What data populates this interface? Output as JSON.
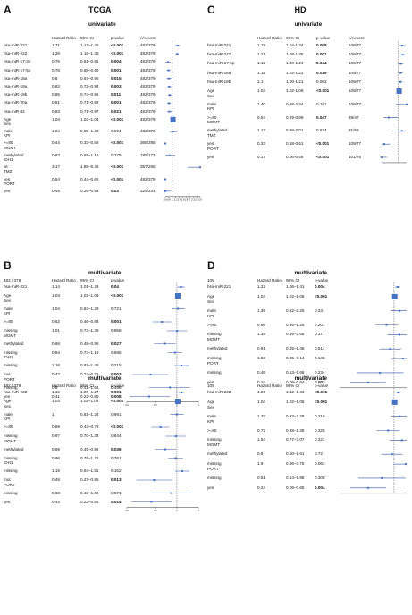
{
  "panels": [
    {
      "id": "A",
      "label": "A",
      "title": "TCGA",
      "subtitle": "univariate",
      "headers": {
        "ref": "",
        "hr": "Hazard Ratio",
        "ci": "95% CI",
        "p": "p-value",
        "n": "n/nevent"
      },
      "axis": {
        "min": 0.6,
        "max": 2.6,
        "ticks": [
          "0.6",
          "0.8",
          "1",
          "1.2",
          "1.4",
          "1.6",
          "1.8",
          "2",
          "2.2",
          "2.4",
          "2.6"
        ]
      },
      "rows": [
        {
          "label": "hsa-miR-221",
          "hr": "1.31",
          "ci": "1.17–1.46",
          "p": "<0.001",
          "n": "482/379",
          "bold": true,
          "est": 1.31,
          "lo": 1.17,
          "hi": 1.46
        },
        {
          "label": "hsa-miR-222",
          "hr": "1.28",
          "ci": "1.18–1.38",
          "p": "<0.001",
          "n": "482/379",
          "bold": true,
          "est": 1.28,
          "lo": 1.18,
          "hi": 1.38
        },
        {
          "label": "hsa-miR-17-3p",
          "hr": "0.75",
          "ci": "0.61–0.91",
          "p": "0.004",
          "n": "482/379",
          "bold": true,
          "est": 0.75,
          "lo": 0.61,
          "hi": 0.91
        },
        {
          "label": "hsa-miR-17-5p",
          "hr": "0.78",
          "ci": "0.68–0.90",
          "p": "0.001",
          "n": "482/379",
          "bold": true,
          "est": 0.78,
          "lo": 0.68,
          "hi": 0.9
        },
        {
          "label": "hsa-miR-18a",
          "hr": "0.8",
          "ci": "0.67–0.96",
          "p": "0.015",
          "n": "482/379",
          "bold": true,
          "est": 0.8,
          "lo": 0.67,
          "hi": 0.96
        },
        {
          "label": "hsa-miR-19a",
          "hr": "0.82",
          "ci": "0.72–0.94",
          "p": "0.003",
          "n": "482/379",
          "bold": true,
          "est": 0.82,
          "lo": 0.72,
          "hi": 0.94
        },
        {
          "label": "hsa-miR-19b",
          "hr": "0.85",
          "ci": "0.74–0.96",
          "p": "0.011",
          "n": "482/379",
          "bold": true,
          "est": 0.85,
          "lo": 0.74,
          "hi": 0.96
        },
        {
          "label": "hsa-miR-20a",
          "hr": "0.81",
          "ci": "0.71–0.92",
          "p": "0.001",
          "n": "482/379",
          "bold": true,
          "est": 0.81,
          "lo": 0.71,
          "hi": 0.92
        },
        {
          "label": "hsa-miR-92",
          "hr": "0.83",
          "ci": "0.71–0.97",
          "p": "0.021",
          "n": "482/379",
          "bold": true,
          "est": 0.83,
          "lo": 0.71,
          "hi": 0.97
        },
        {
          "label": "Age",
          "hr": "1.04",
          "ci": "1.03–1.04",
          "p": "<0.001",
          "n": "482/379",
          "bold": true,
          "est": 1.04,
          "lo": 1.03,
          "hi": 1.04,
          "big": true
        },
        {
          "pre": [
            "Sex"
          ],
          "label": "male",
          "hr": "1.04",
          "ci": "0.85–1.28",
          "p": "0.694",
          "n": "482/379",
          "bold": false,
          "est": 1.04,
          "lo": 0.85,
          "hi": 1.28
        },
        {
          "pre": [
            "KPI"
          ],
          "label": ">=80",
          "hr": "0.44",
          "ci": "0.33–0.58",
          "p": "<0.001",
          "n": "368/285",
          "bold": true,
          "est": 0.44,
          "lo": 0.33,
          "hi": 0.58
        },
        {
          "pre": [
            "MGMT"
          ],
          "label": "methylated",
          "hr": "0.83",
          "ci": "0.59–1.16",
          "p": "0.278",
          "n": "185/173",
          "bold": false,
          "est": 0.83,
          "lo": 0.59,
          "hi": 1.16
        },
        {
          "pre": [
            "IDH1"
          ],
          "label": "wt",
          "hr": "3.17",
          "ci": "1.88–5.36",
          "p": "<0.001",
          "n": "357/265",
          "bold": true,
          "est": 3.17,
          "lo": 1.88,
          "hi": 5.36
        },
        {
          "pre": [
            "TMZ"
          ],
          "label": "yes",
          "hr": "0.54",
          "ci": "0.44–0.66",
          "p": "<0.001",
          "n": "482/379",
          "bold": true,
          "est": 0.54,
          "lo": 0.44,
          "hi": 0.66
        },
        {
          "pre": [
            "PORT"
          ],
          "label": "yes",
          "hr": "0.49",
          "ci": "0.26–0.93",
          "p": "0.03",
          "n": "324/241",
          "bold": true,
          "est": 0.49,
          "lo": 0.26,
          "hi": 0.93
        }
      ]
    },
    {
      "id": "C",
      "label": "C",
      "title": "HD",
      "subtitle": "univariate",
      "headers": {
        "ref": "",
        "hr": "Hazard Ratio",
        "ci": "95% CI",
        "p": "p-value",
        "n": "n/nevent"
      },
      "axis": {
        "min": 0.2,
        "max": 1.4,
        "ticks": []
      },
      "rows": [
        {
          "label": "hsa-miR-221",
          "hr": "1.19",
          "ci": "1.04-1.34",
          "p": "0.008",
          "n": "109/77",
          "bold": true,
          "est": 1.19,
          "lo": 1.04,
          "hi": 1.34
        },
        {
          "label": "hsa-miR-222",
          "hr": "1.21",
          "ci": "1.08-1.35",
          "p": "0.001",
          "n": "109/77",
          "bold": true,
          "est": 1.21,
          "lo": 1.08,
          "hi": 1.35
        },
        {
          "label": "hsa-miR-17-5p",
          "hr": "1.12",
          "ci": "1.00-1.24",
          "p": "0.044",
          "n": "109/77",
          "bold": true,
          "est": 1.12,
          "lo": 1.0,
          "hi": 1.24
        },
        {
          "label": "hsa-miR-18a",
          "hr": "1.11",
          "ci": "1.02-1.22",
          "p": "0.019",
          "n": "109/77",
          "bold": true,
          "est": 1.11,
          "lo": 1.02,
          "hi": 1.22
        },
        {
          "label": "hsa-miR-19b",
          "hr": "1.1",
          "ci": "1.00-1.21",
          "p": "0.052",
          "n": "109/77",
          "bold": false,
          "est": 1.1,
          "lo": 1.0,
          "hi": 1.21
        },
        {
          "label": "Age",
          "hr": "1.04",
          "ci": "1.02-1.06",
          "p": "<0.001",
          "n": "109/77",
          "bold": true,
          "est": 1.04,
          "lo": 1.02,
          "hi": 1.06,
          "big": true
        },
        {
          "pre": [
            "Sex"
          ],
          "label": "male",
          "hr": "1.40",
          "ci": "0.88-2.34",
          "p": "0.151",
          "n": "109/77",
          "bold": false,
          "est": 1.4,
          "lo": 0.88,
          "hi": 2.34
        },
        {
          "pre": [
            "KPI"
          ],
          "label": ">=80",
          "hr": "0.54",
          "ci": "0.29-0.99",
          "p": "0.047",
          "n": "69/47",
          "bold": true,
          "est": 0.54,
          "lo": 0.29,
          "hi": 0.99
        },
        {
          "pre": [
            "MGMT"
          ],
          "label": "methylated",
          "hr": "1.17",
          "ci": "0.68-2.01",
          "p": "0.574",
          "n": "81/56",
          "bold": false,
          "est": 1.17,
          "lo": 0.68,
          "hi": 2.01
        },
        {
          "pre": [
            "TMZ"
          ],
          "label": "yes",
          "hr": "0.33",
          "ci": "0.18-0.61",
          "p": "<0.001",
          "n": "109/77",
          "bold": true,
          "est": 0.33,
          "lo": 0.18,
          "hi": 0.61
        },
        {
          "pre": [
            "PORT"
          ],
          "label": "yes",
          "hr": "0.17",
          "ci": "0.06-0.46",
          "p": "<0.001",
          "n": "101/76",
          "bold": true,
          "est": 0.17,
          "lo": 0.06,
          "hi": 0.46
        }
      ]
    },
    {
      "id": "B1",
      "label": "B",
      "title": "",
      "subtitle": "multivariate",
      "headers": {
        "ref": "482 / 379",
        "hr": "Hazard Ratio",
        "ci": "95% CI",
        "p": "p-value",
        "n": ""
      },
      "axis": {
        "min": 0.2,
        "max": 2.0,
        "ticks": [
          "0.2",
          "0.5",
          "1",
          "2"
        ]
      },
      "rows": [
        {
          "label": "hsa-miR-221",
          "hr": "1.14",
          "ci": "1.01–1.29",
          "p": "0.04",
          "bold": true,
          "est": 1.14,
          "lo": 1.01,
          "hi": 1.29
        },
        {
          "label": "Age",
          "hr": "1.03",
          "ci": "1.02–1.04",
          "p": "<0.001",
          "bold": true,
          "est": 1.03,
          "lo": 1.02,
          "hi": 1.04,
          "big": true
        },
        {
          "pre": [
            "Sex"
          ],
          "label": "male",
          "hr": "1.04",
          "ci": "0.84–1.29",
          "p": "0.721",
          "bold": false,
          "est": 1.04,
          "lo": 0.84,
          "hi": 1.29
        },
        {
          "pre": [
            "KPI"
          ],
          "label": ">=80",
          "hr": "0.62",
          "ci": "0.46–0.83",
          "p": "0.001",
          "bold": true,
          "est": 0.62,
          "lo": 0.46,
          "hi": 0.83
        },
        {
          "label": "missing",
          "hr": "1.01",
          "ci": "0.73–1.39",
          "p": "0.958",
          "bold": false,
          "est": 1.01,
          "lo": 0.73,
          "hi": 1.39
        },
        {
          "pre": [
            "MGMT"
          ],
          "label": "methylated",
          "hr": "0.68",
          "ci": "0.48–0.96",
          "p": "0.027",
          "bold": true,
          "est": 0.68,
          "lo": 0.48,
          "hi": 0.96
        },
        {
          "label": "missing",
          "hr": "0.94",
          "ci": "0.74–1.19",
          "p": "0.595",
          "bold": false,
          "est": 0.94,
          "lo": 0.74,
          "hi": 1.19
        },
        {
          "pre": [
            "IDH1"
          ],
          "label": "missing",
          "hr": "1.16",
          "ci": "0.92–1.48",
          "p": "0.215",
          "bold": false,
          "est": 1.16,
          "lo": 0.92,
          "hi": 1.48
        },
        {
          "label": "mut",
          "hr": "0.43",
          "ci": "0.24–0.76",
          "p": "0.003",
          "bold": true,
          "est": 0.43,
          "lo": 0.24,
          "hi": 0.76
        },
        {
          "pre": [
            "PORT"
          ],
          "label": "missing",
          "hr": "0.8",
          "ci": "0.41–1.54",
          "p": "0.498",
          "bold": false,
          "est": 0.8,
          "lo": 0.41,
          "hi": 1.54
        },
        {
          "label": "yes",
          "hr": "0.41",
          "ci": "0.22–0.80",
          "p": "0.008",
          "bold": true,
          "est": 0.41,
          "lo": 0.22,
          "hi": 0.8
        }
      ]
    },
    {
      "id": "B2",
      "label": "",
      "title": "",
      "subtitle": "multivariate",
      "headers": {
        "ref": "482 / 379",
        "hr": "Hazard Ratio",
        "ci": "95% CI",
        "p": "p-value",
        "n": ""
      },
      "axis": {
        "min": 0.2,
        "max": 2.0,
        "ticks": [
          "0.2",
          "0.5",
          "1",
          "2"
        ]
      },
      "rows": [
        {
          "label": "hsa-miR-222",
          "hr": "1.16",
          "ci": "1.06–1.27",
          "p": "0.001",
          "bold": true,
          "est": 1.16,
          "lo": 1.06,
          "hi": 1.27
        },
        {
          "label": "Age",
          "hr": "1.03",
          "ci": "1.02–1.04",
          "p": "<0.001",
          "bold": true,
          "est": 1.03,
          "lo": 1.02,
          "hi": 1.04,
          "big": true
        },
        {
          "pre": [
            "Sex"
          ],
          "label": "male",
          "hr": "1",
          "ci": "0.81–1.24",
          "p": "0.991",
          "bold": false,
          "est": 1.0,
          "lo": 0.81,
          "hi": 1.24
        },
        {
          "pre": [
            "KPI"
          ],
          "label": ">=80",
          "hr": "0.59",
          "ci": "0.44–0.79",
          "p": "<0.001",
          "bold": true,
          "est": 0.59,
          "lo": 0.44,
          "hi": 0.79
        },
        {
          "label": "missing",
          "hr": "0.97",
          "ci": "0.70–1.33",
          "p": "0.844",
          "bold": false,
          "est": 0.97,
          "lo": 0.7,
          "hi": 1.33
        },
        {
          "pre": [
            "MGMT"
          ],
          "label": "methylated",
          "hr": "0.69",
          "ci": "0.49–0.98",
          "p": "0.036",
          "bold": true,
          "est": 0.69,
          "lo": 0.49,
          "hi": 0.98
        },
        {
          "label": "missing",
          "hr": "0.96",
          "ci": "0.76–1.22",
          "p": "0.761",
          "bold": false,
          "est": 0.96,
          "lo": 0.76,
          "hi": 1.22
        },
        {
          "pre": [
            "IDH1"
          ],
          "label": "missing",
          "hr": "1.19",
          "ci": "0.94–1.51",
          "p": "0.152",
          "bold": false,
          "est": 1.19,
          "lo": 0.94,
          "hi": 1.51
        },
        {
          "label": "mut",
          "hr": "0.48",
          "ci": "0.27–0.85",
          "p": "0.013",
          "bold": true,
          "est": 0.48,
          "lo": 0.27,
          "hi": 0.85
        },
        {
          "pre": [
            "PORT"
          ],
          "label": "missing",
          "hr": "0.83",
          "ci": "0.43–1.60",
          "p": "0.571",
          "bold": false,
          "est": 0.83,
          "lo": 0.43,
          "hi": 1.6
        },
        {
          "label": "yes",
          "hr": "0.44",
          "ci": "0.23–0.85",
          "p": "0.014",
          "bold": true,
          "est": 0.44,
          "lo": 0.23,
          "hi": 0.85
        }
      ]
    },
    {
      "id": "D1",
      "label": "D",
      "title": "",
      "subtitle": "multivariate",
      "headers": {
        "ref": "109",
        "hr": "Hazard Ratio",
        "ci": "95% CI",
        "p": "p-value",
        "n": ""
      },
      "axis": {
        "min": 0.05,
        "max": 2.0,
        "ticks": []
      },
      "rows": [
        {
          "label": "hsa-miR-221",
          "hr": "1.22",
          "ci": "1.06–1.41",
          "p": "0.004",
          "bold": true,
          "est": 1.22,
          "lo": 1.06,
          "hi": 1.41
        },
        {
          "label": "Age",
          "hr": "1.04",
          "ci": "1.02–1.06",
          "p": "<0.001",
          "bold": true,
          "est": 1.04,
          "lo": 1.02,
          "hi": 1.06,
          "big": true
        },
        {
          "pre": [
            "Sex"
          ],
          "label": "male",
          "hr": "1.36",
          "ci": "0.82–2.25",
          "p": "0.23",
          "bold": false,
          "est": 1.36,
          "lo": 0.82,
          "hi": 2.25
        },
        {
          "pre": [
            "KPI"
          ],
          "label": ">=80",
          "hr": "0.66",
          "ci": "0.35–1.25",
          "p": "0.201",
          "bold": false,
          "est": 0.66,
          "lo": 0.35,
          "hi": 1.25
        },
        {
          "label": "missing",
          "hr": "1.35",
          "ci": "0.69–2.66",
          "p": "0.377",
          "bold": false,
          "est": 1.35,
          "lo": 0.69,
          "hi": 2.66
        },
        {
          "pre": [
            "MGMT"
          ],
          "label": "methylated",
          "hr": "0.81",
          "ci": "0.45–1.48",
          "p": "0.514",
          "bold": false,
          "est": 0.81,
          "lo": 0.45,
          "hi": 1.48
        },
        {
          "label": "missing",
          "hr": "1.63",
          "ci": "0.85–3.14",
          "p": "0.145",
          "bold": false,
          "est": 1.63,
          "lo": 0.85,
          "hi": 3.14
        },
        {
          "pre": [
            "PORT"
          ],
          "label": "missing",
          "hr": "0.46",
          "ci": "0.13–1.68",
          "p": "0.234",
          "bold": false,
          "est": 0.46,
          "lo": 0.13,
          "hi": 1.68
        },
        {
          "label": "yes",
          "hr": "0.24",
          "ci": "0.09–0.64",
          "p": "0.003",
          "bold": true,
          "est": 0.24,
          "lo": 0.09,
          "hi": 0.64
        }
      ]
    },
    {
      "id": "D2",
      "label": "",
      "title": "",
      "subtitle": "multivariate",
      "headers": {
        "ref": "109",
        "hr": "Hazard Ratio",
        "ci": "95% CI",
        "p": "p-value",
        "n": ""
      },
      "axis": {
        "min": 0.05,
        "max": 2.0,
        "ticks": []
      },
      "rows": [
        {
          "label": "hsa-miR-222",
          "hr": "1.26",
          "ci": "1.12–1.43",
          "p": "<0.001",
          "bold": true,
          "est": 1.26,
          "lo": 1.12,
          "hi": 1.43
        },
        {
          "label": "Age",
          "hr": "1.04",
          "ci": "1.02–1.06",
          "p": "<0.001",
          "bold": true,
          "est": 1.04,
          "lo": 1.02,
          "hi": 1.06,
          "big": true
        },
        {
          "pre": [
            "Sex"
          ],
          "label": "male",
          "hr": "1.37",
          "ci": "0.83–2.28",
          "p": "0.219",
          "bold": false,
          "est": 1.37,
          "lo": 0.83,
          "hi": 2.28
        },
        {
          "pre": [
            "KPI"
          ],
          "label": ">=80",
          "hr": "0.72",
          "ci": "0.38–1.39",
          "p": "0.325",
          "bold": false,
          "est": 0.72,
          "lo": 0.38,
          "hi": 1.39
        },
        {
          "label": "missing",
          "hr": "1.54",
          "ci": "0.77–3.07",
          "p": "0.221",
          "bold": false,
          "est": 1.54,
          "lo": 0.77,
          "hi": 3.07
        },
        {
          "pre": [
            "MGMT"
          ],
          "label": "methylated",
          "hr": "0.9",
          "ci": "0.50–1.61",
          "p": "0.72",
          "bold": false,
          "est": 0.9,
          "lo": 0.5,
          "hi": 1.61
        },
        {
          "label": "missing",
          "hr": "1.9",
          "ci": "0.96–3.75",
          "p": "0.063",
          "bold": false,
          "est": 1.9,
          "lo": 0.96,
          "hi": 3.75
        },
        {
          "pre": [
            "PORT"
          ],
          "label": "missing",
          "hr": "0.51",
          "ci": "0.14–1.88",
          "p": "0.308",
          "bold": false,
          "est": 0.51,
          "lo": 0.14,
          "hi": 1.88
        },
        {
          "label": "yes",
          "hr": "0.24",
          "ci": "0.09–0.65",
          "p": "0.004",
          "bold": true,
          "est": 0.24,
          "lo": 0.09,
          "hi": 0.65
        }
      ]
    }
  ],
  "colors": {
    "marker": "#4472c4",
    "line": "#2f56a6",
    "refline": "#555555",
    "text": "#111111"
  }
}
